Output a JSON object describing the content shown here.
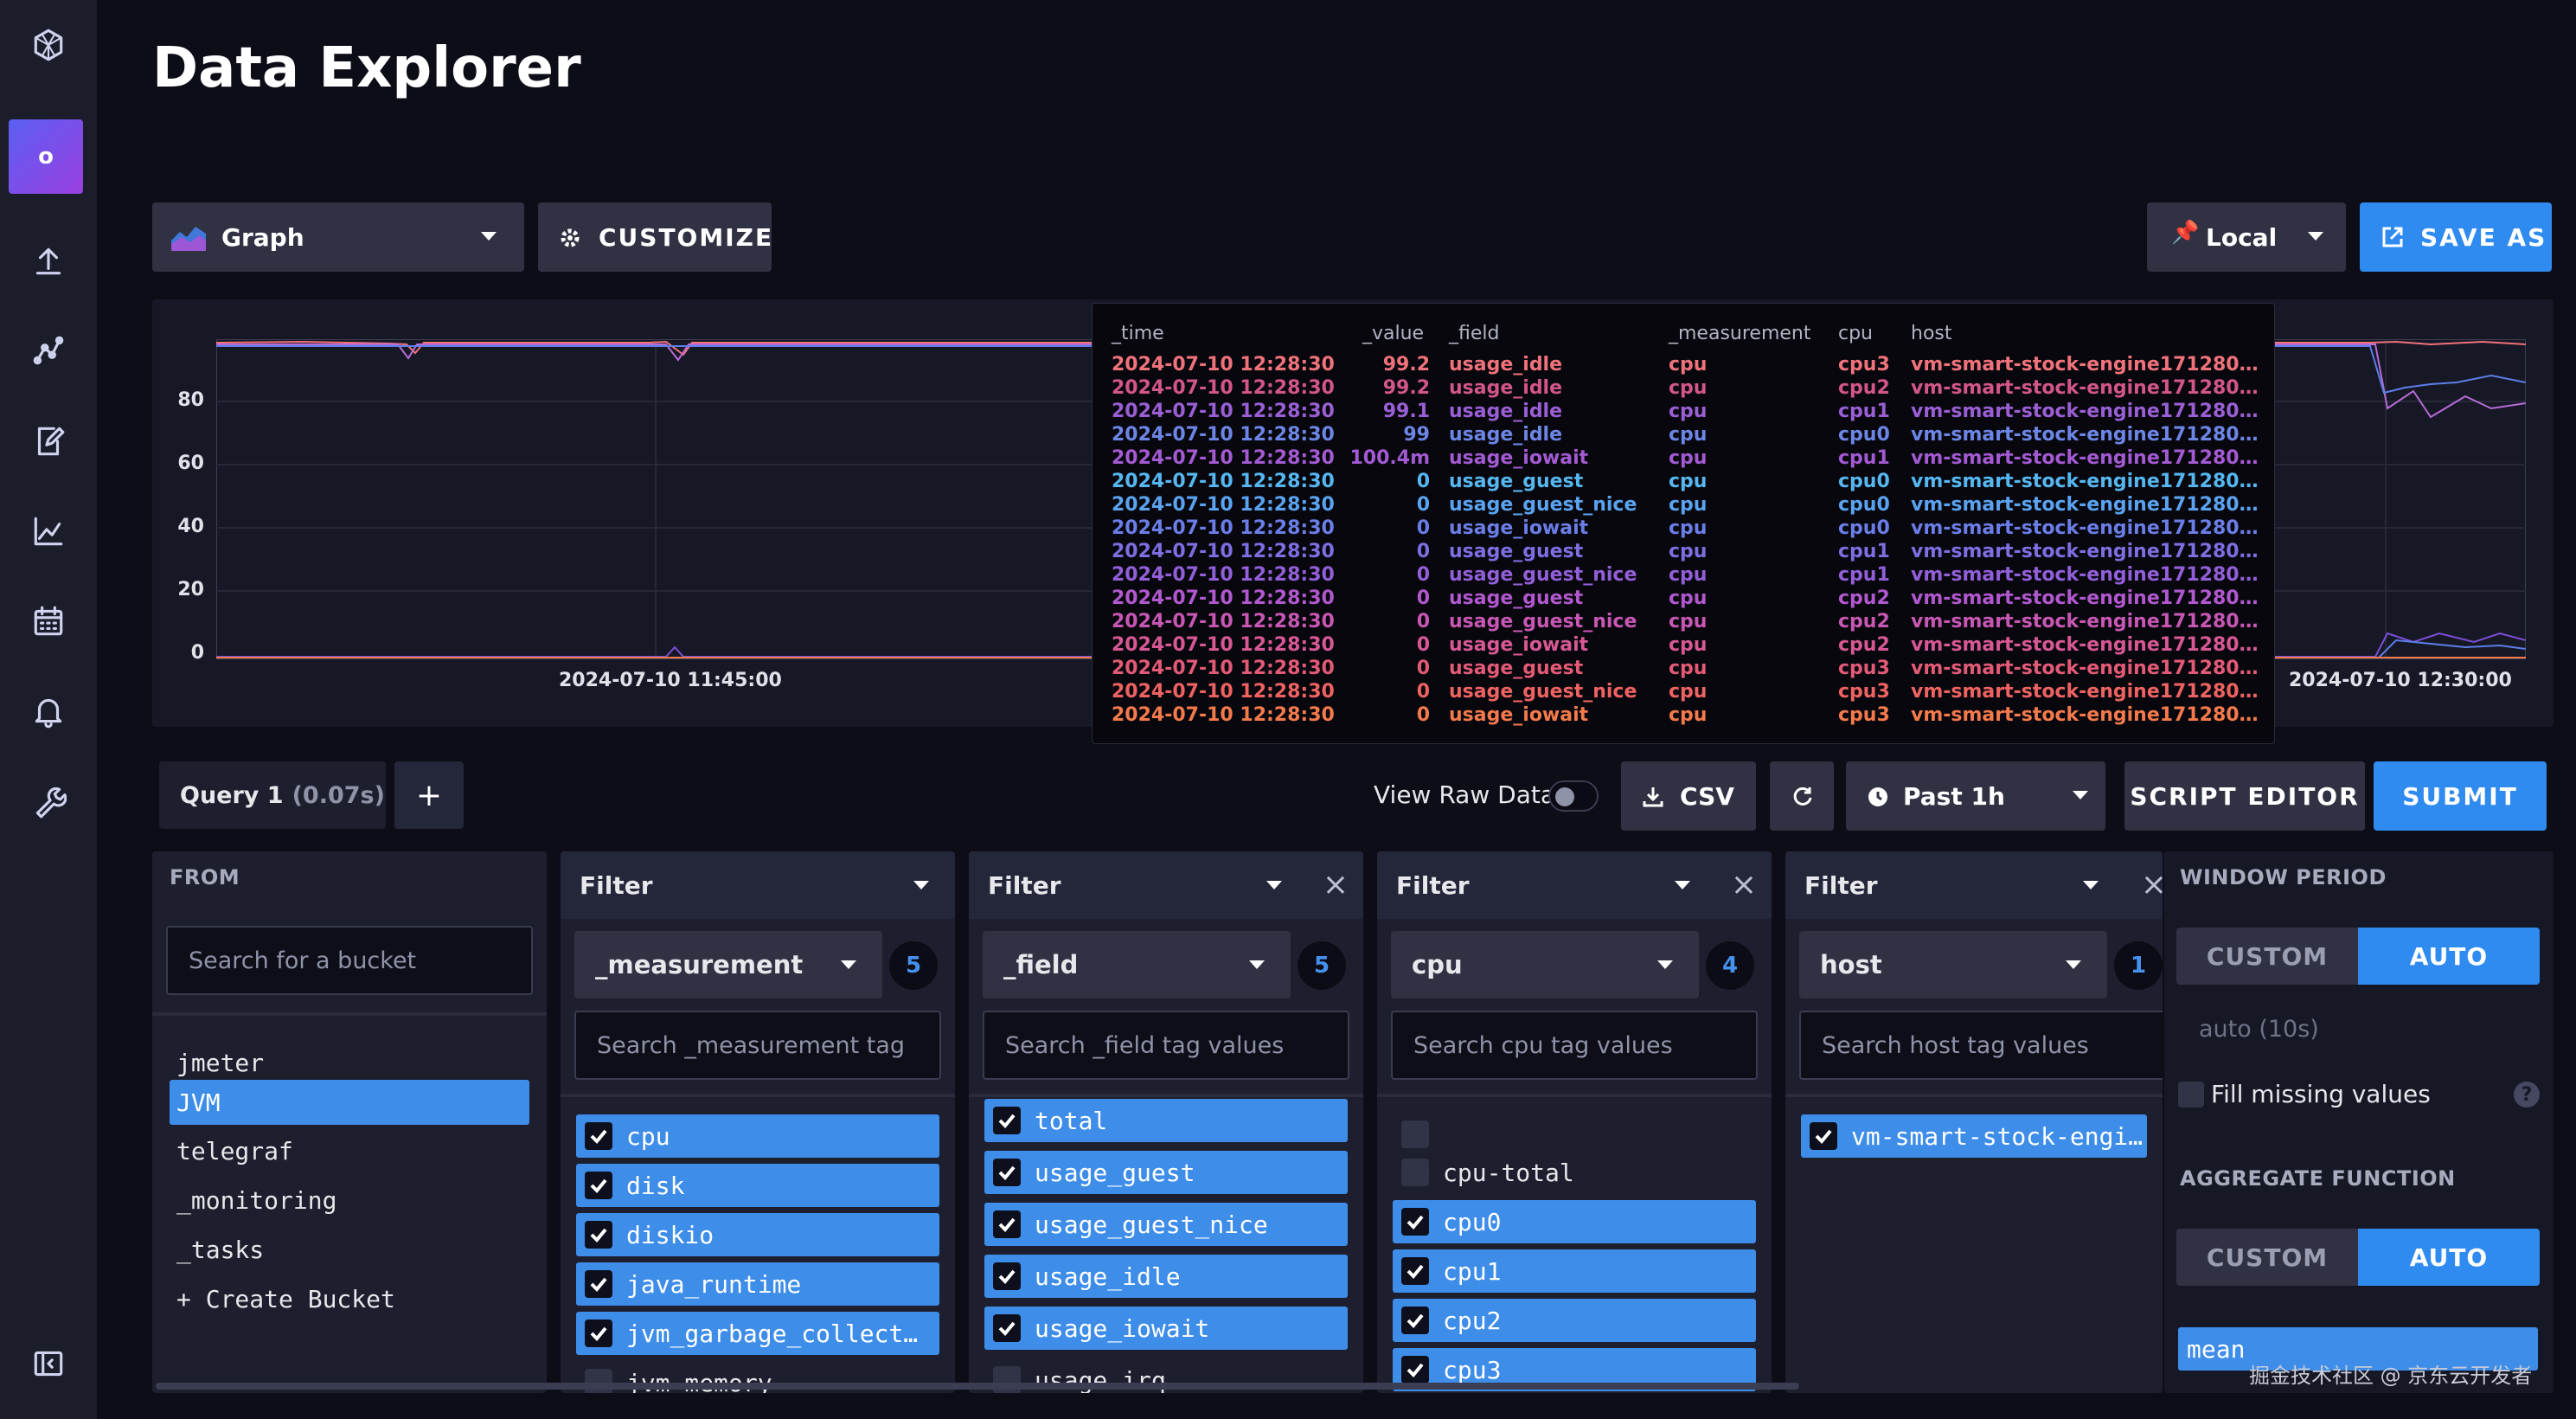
{
  "page": {
    "title": "Data Explorer"
  },
  "sidebar": {
    "org_initial": "o"
  },
  "toolbar": {
    "graph_type": "Graph",
    "customize": "CUSTOMIZE",
    "timezone": "Local",
    "save_as": "SAVE AS"
  },
  "chart_data": {
    "type": "line",
    "y_ticks": [
      "80",
      "60",
      "40",
      "20",
      "0"
    ],
    "x_ticks": [
      "2024-07-10 11:45:00",
      "2024-07-10 12:30:00"
    ],
    "series_colors": [
      "#f0727b",
      "#b76cd8",
      "#5c7ee8",
      "#7a4fd8"
    ]
  },
  "tooltip": {
    "headers": [
      "_time",
      "_value",
      "_field",
      "_measurement",
      "cpu",
      "host"
    ],
    "rows": [
      {
        "time": "2024-07-10 12:28:30",
        "value": "99.2",
        "field": "usage_idle",
        "measurement": "cpu",
        "cpu": "cpu3",
        "host": "vm-smart-stock-engine171280…",
        "color": "#f0727b"
      },
      {
        "time": "2024-07-10 12:28:30",
        "value": "99.2",
        "field": "usage_idle",
        "measurement": "cpu",
        "cpu": "cpu2",
        "host": "vm-smart-stock-engine171280…",
        "color": "#d3568a"
      },
      {
        "time": "2024-07-10 12:28:30",
        "value": "99.1",
        "field": "usage_idle",
        "measurement": "cpu",
        "cpu": "cpu1",
        "host": "vm-smart-stock-engine171280…",
        "color": "#9b5fd5"
      },
      {
        "time": "2024-07-10 12:28:30",
        "value": "99",
        "field": "usage_idle",
        "measurement": "cpu",
        "cpu": "cpu0",
        "host": "vm-smart-stock-engine171280…",
        "color": "#6d86e6"
      },
      {
        "time": "2024-07-10 12:28:30",
        "value": "100.4m",
        "field": "usage_iowait",
        "measurement": "cpu",
        "cpu": "cpu1",
        "host": "vm-smart-stock-engine171280…",
        "color": "#a35ad2"
      },
      {
        "time": "2024-07-10 12:28:30",
        "value": "0",
        "field": "usage_guest",
        "measurement": "cpu",
        "cpu": "cpu0",
        "host": "vm-smart-stock-engine171280…",
        "color": "#56b7f0"
      },
      {
        "time": "2024-07-10 12:28:30",
        "value": "0",
        "field": "usage_guest_nice",
        "measurement": "cpu",
        "cpu": "cpu0",
        "host": "vm-smart-stock-engine171280…",
        "color": "#5aa3f0"
      },
      {
        "time": "2024-07-10 12:28:30",
        "value": "0",
        "field": "usage_iowait",
        "measurement": "cpu",
        "cpu": "cpu0",
        "host": "vm-smart-stock-engine171280…",
        "color": "#6b7ee8"
      },
      {
        "time": "2024-07-10 12:28:30",
        "value": "0",
        "field": "usage_guest",
        "measurement": "cpu",
        "cpu": "cpu1",
        "host": "vm-smart-stock-engine171280…",
        "color": "#7d6ee2"
      },
      {
        "time": "2024-07-10 12:28:30",
        "value": "0",
        "field": "usage_guest_nice",
        "measurement": "cpu",
        "cpu": "cpu1",
        "host": "vm-smart-stock-engine171280…",
        "color": "#935fd9"
      },
      {
        "time": "2024-07-10 12:28:30",
        "value": "0",
        "field": "usage_guest",
        "measurement": "cpu",
        "cpu": "cpu2",
        "host": "vm-smart-stock-engine171280…",
        "color": "#b258cf"
      },
      {
        "time": "2024-07-10 12:28:30",
        "value": "0",
        "field": "usage_guest_nice",
        "measurement": "cpu",
        "cpu": "cpu2",
        "host": "vm-smart-stock-engine171280…",
        "color": "#c857b4"
      },
      {
        "time": "2024-07-10 12:28:30",
        "value": "0",
        "field": "usage_iowait",
        "measurement": "cpu",
        "cpu": "cpu2",
        "host": "vm-smart-stock-engine171280…",
        "color": "#d75894"
      },
      {
        "time": "2024-07-10 12:28:30",
        "value": "0",
        "field": "usage_guest",
        "measurement": "cpu",
        "cpu": "cpu3",
        "host": "vm-smart-stock-engine171280…",
        "color": "#e35a77"
      },
      {
        "time": "2024-07-10 12:28:30",
        "value": "0",
        "field": "usage_guest_nice",
        "measurement": "cpu",
        "cpu": "cpu3",
        "host": "vm-smart-stock-engine171280…",
        "color": "#ee6362"
      },
      {
        "time": "2024-07-10 12:28:30",
        "value": "0",
        "field": "usage_iowait",
        "measurement": "cpu",
        "cpu": "cpu3",
        "host": "vm-smart-stock-engine171280…",
        "color": "#f47a4c"
      }
    ]
  },
  "query_bar": {
    "query_name": "Query 1",
    "query_time": "(0.07s)",
    "add": "+",
    "view_raw": "View Raw Data",
    "csv": "CSV",
    "time_range": "Past 1h",
    "script_editor": "SCRIPT EDITOR",
    "submit": "SUBMIT"
  },
  "from_panel": {
    "label": "FROM",
    "search_placeholder": "Search for a bucket",
    "buckets": [
      "jmeter",
      "JVM",
      "telegraf",
      "_monitoring",
      "_tasks",
      "+ Create Bucket"
    ]
  },
  "filters": [
    {
      "title": "Filter",
      "key": "_measurement",
      "count": "5",
      "search": "Search _measurement tag",
      "items": [
        {
          "label": "cpu",
          "on": true
        },
        {
          "label": "disk",
          "on": true
        },
        {
          "label": "diskio",
          "on": true
        },
        {
          "label": "java_runtime",
          "on": true
        },
        {
          "label": "jvm_garbage_collect…",
          "on": true
        },
        {
          "label": "jvm_memory",
          "on": false
        }
      ]
    },
    {
      "title": "Filter",
      "key": "_field",
      "count": "5",
      "search": "Search _field tag values",
      "items": [
        {
          "label": "total",
          "on": true
        },
        {
          "label": "usage_guest",
          "on": true
        },
        {
          "label": "usage_guest_nice",
          "on": true
        },
        {
          "label": "usage_idle",
          "on": true
        },
        {
          "label": "usage_iowait",
          "on": true
        },
        {
          "label": "usage_irq",
          "on": false
        }
      ]
    },
    {
      "title": "Filter",
      "key": "cpu",
      "count": "4",
      "search": "Search cpu tag values",
      "items": [
        {
          "label": "",
          "on": false
        },
        {
          "label": "cpu-total",
          "on": false
        },
        {
          "label": "cpu0",
          "on": true
        },
        {
          "label": "cpu1",
          "on": true
        },
        {
          "label": "cpu2",
          "on": true
        },
        {
          "label": "cpu3",
          "on": true
        }
      ]
    },
    {
      "title": "Filter",
      "key": "host",
      "count": "1",
      "search": "Search host tag values",
      "items": [
        {
          "label": "vm-smart-stock-engi…",
          "on": true
        }
      ]
    }
  ],
  "window_panel": {
    "window_period_label": "WINDOW PERIOD",
    "custom": "CUSTOM",
    "auto": "AUTO",
    "auto_value": "auto (10s)",
    "fill_missing": "Fill missing values",
    "help": "?",
    "aggregate_label": "AGGREGATE FUNCTION",
    "agg_custom": "CUSTOM",
    "agg_auto": "AUTO",
    "selected_fn": "mean"
  },
  "watermark": "掘金技术社区 @ 京东云开发者"
}
